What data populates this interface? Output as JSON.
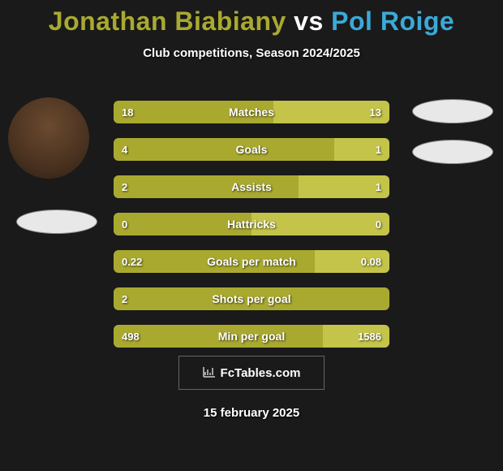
{
  "title": {
    "player1": "Jonathan Biabiany",
    "vs": "vs",
    "player2": "Pol Roige",
    "color1": "#a9a930",
    "color_vs": "#ffffff",
    "color2": "#3aa9d8"
  },
  "subtitle": "Club competitions, Season 2024/2025",
  "date": "15 february 2025",
  "watermark": "FcTables.com",
  "colors": {
    "p1": "#a9a930",
    "p2": "#c4c44a",
    "background": "#1a1a1a"
  },
  "stats": [
    {
      "label": "Matches",
      "v1": "18",
      "v2": "13",
      "w1": 58,
      "w2": 42
    },
    {
      "label": "Goals",
      "v1": "4",
      "v2": "1",
      "w1": 80,
      "w2": 20
    },
    {
      "label": "Assists",
      "v1": "2",
      "v2": "1",
      "w1": 67,
      "w2": 33
    },
    {
      "label": "Hattricks",
      "v1": "0",
      "v2": "0",
      "w1": 50,
      "w2": 50
    },
    {
      "label": "Goals per match",
      "v1": "0.22",
      "v2": "0.08",
      "w1": 73,
      "w2": 27
    },
    {
      "label": "Shots per goal",
      "v1": "2",
      "v2": "",
      "w1": 100,
      "w2": 0
    },
    {
      "label": "Min per goal",
      "v1": "498",
      "v2": "1586",
      "w1": 76,
      "w2": 24
    }
  ]
}
